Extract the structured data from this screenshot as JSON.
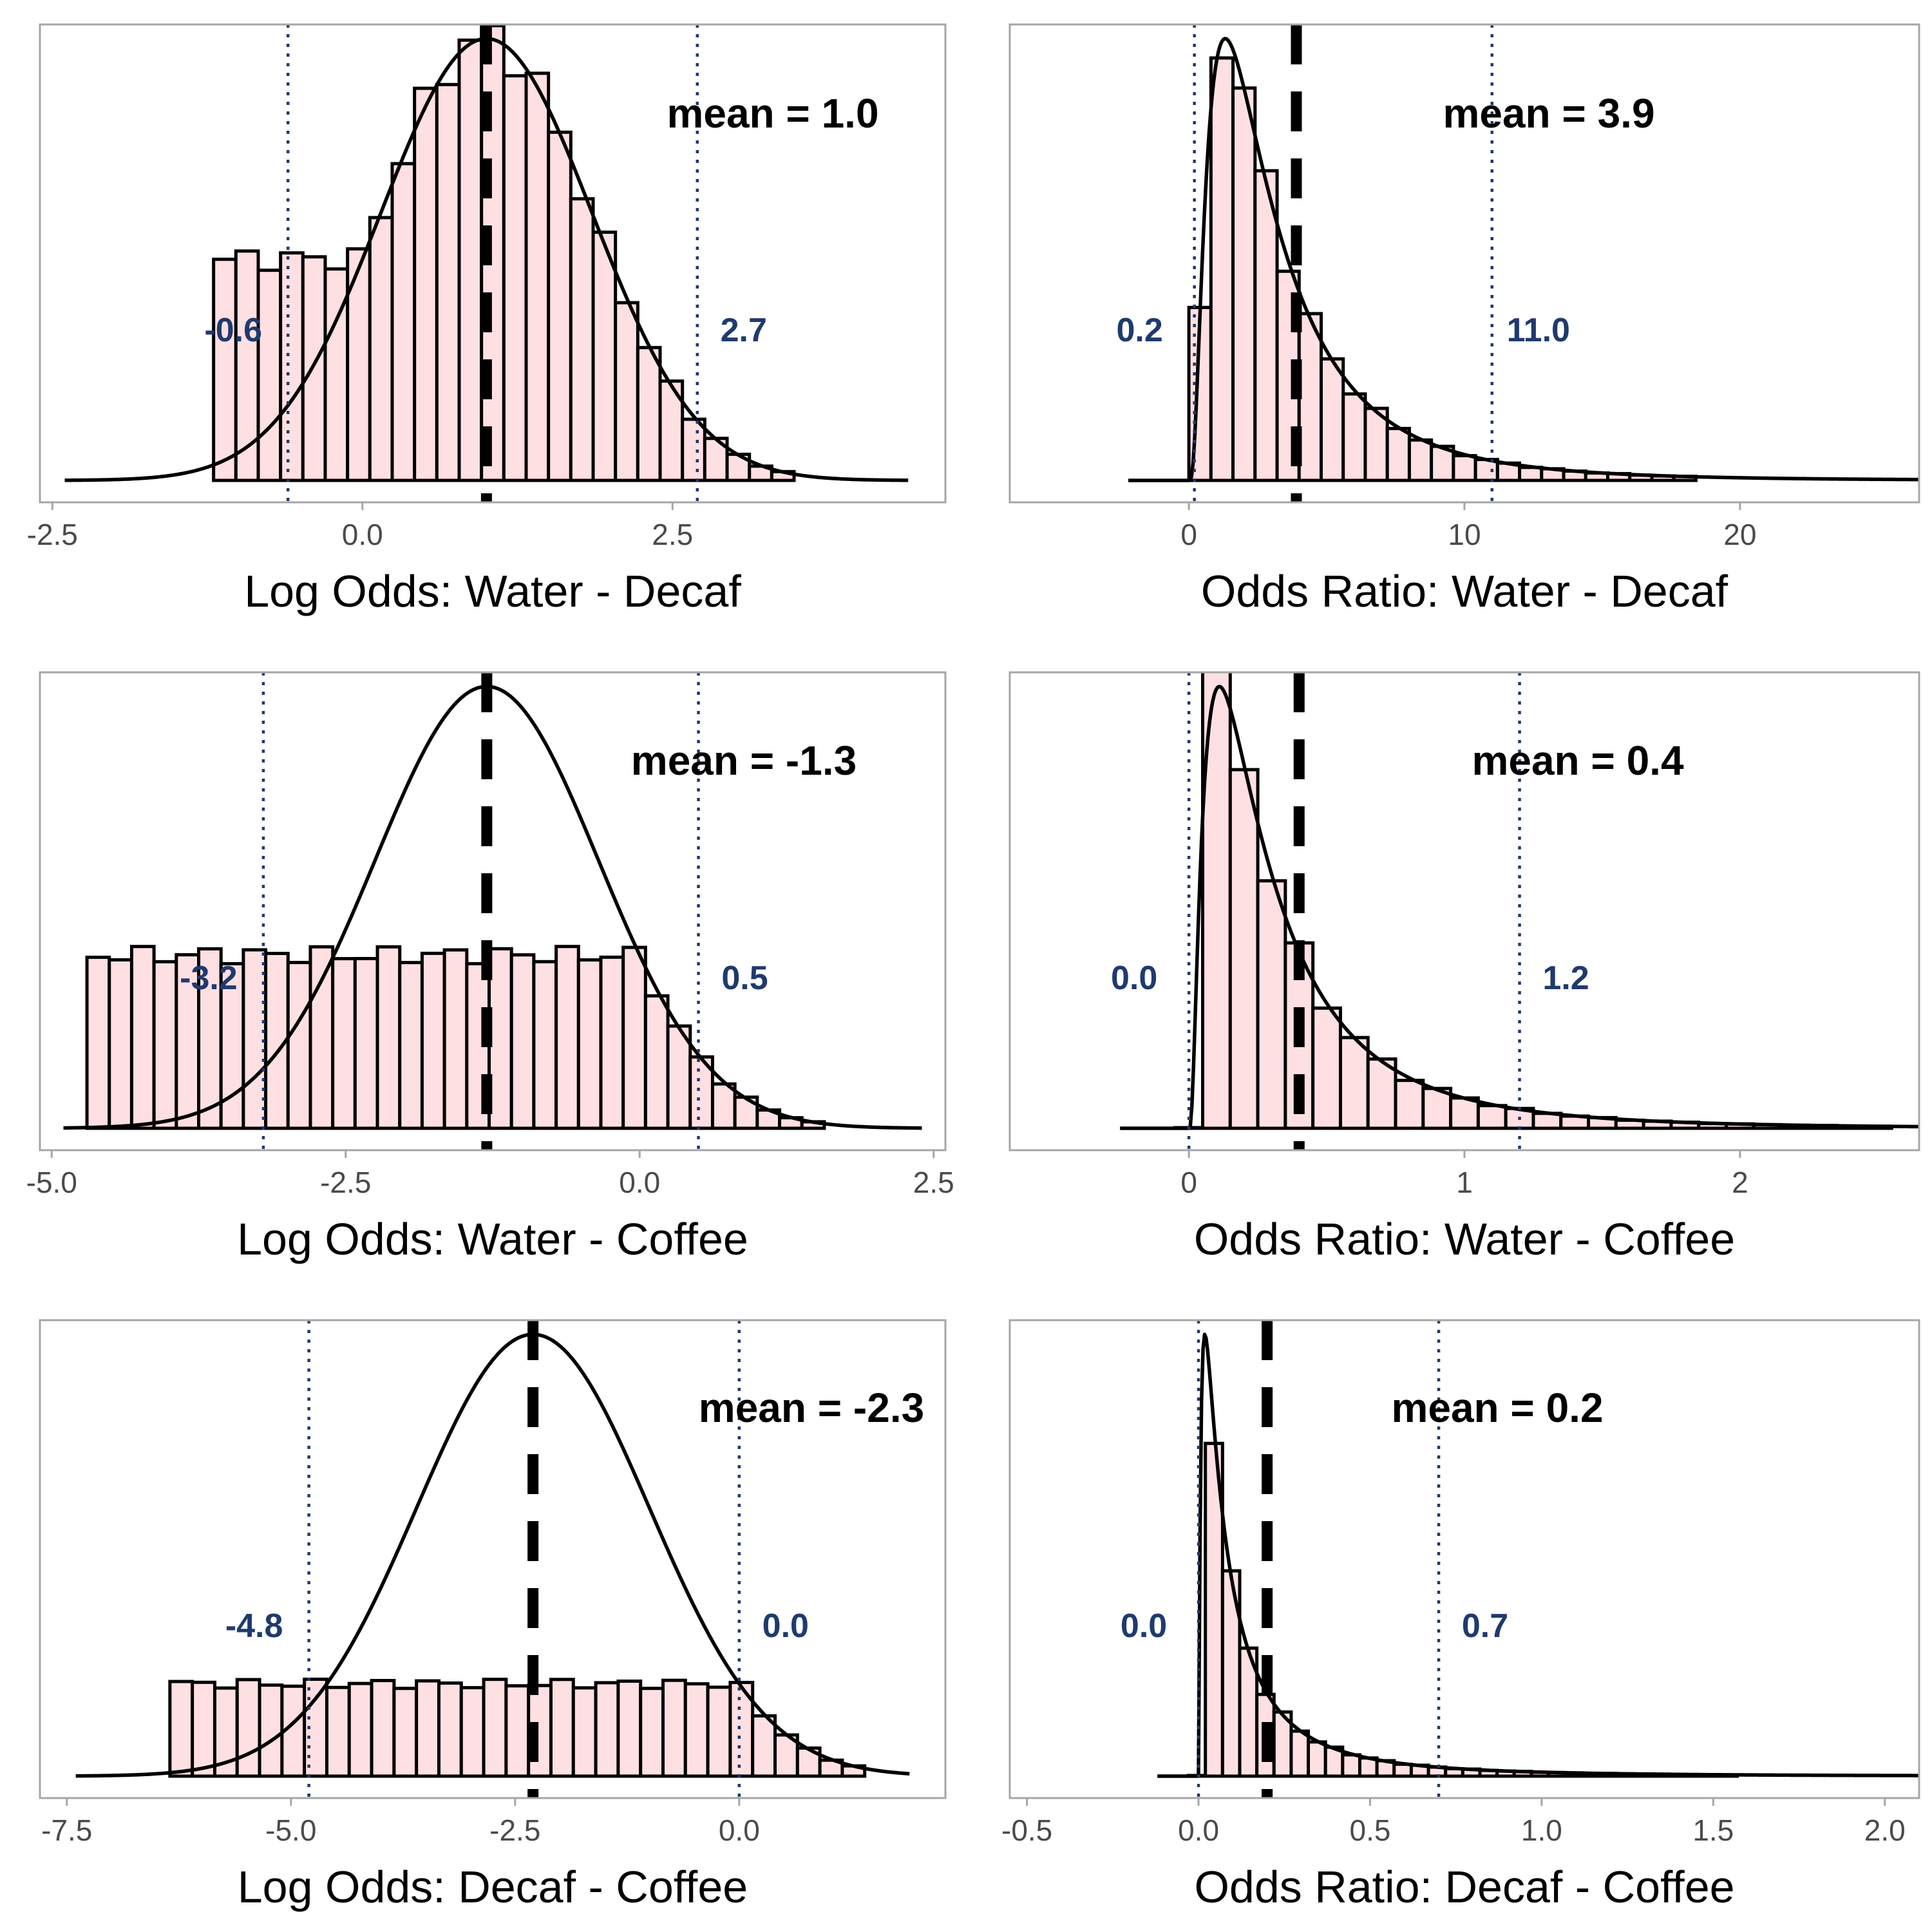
{
  "colors": {
    "bar_fill": "#ffe0e2",
    "bar_stroke": "#000000",
    "density_line": "#000000",
    "mean_line": "#000000",
    "ci_line": "#1f3a6e",
    "ci_label": "#1f3a6e",
    "frame": "#a6a6a6"
  },
  "chart_data": [
    {
      "type": "histogram",
      "grid": false,
      "xlabel": "Log Odds: Water - Decaf",
      "xlim": [
        -2.6,
        4.7
      ],
      "xticks": [
        -2.5,
        0.0,
        2.5
      ],
      "xtick_labels": [
        "-2.5",
        "0.0",
        "2.5"
      ],
      "dist": {
        "kind": "normal",
        "mu": 1.0,
        "sigma": 0.85
      },
      "density_range": [
        -2.4,
        4.4
      ],
      "bin_range": [
        -1.2,
        3.35
      ],
      "bin_width": 0.18,
      "mean": 1.0,
      "mean_label": "mean = 1.0",
      "ci": [
        -0.6,
        2.7
      ],
      "ci_labels": [
        "-0.6",
        "2.7"
      ]
    },
    {
      "type": "histogram",
      "grid": false,
      "xlabel": "Odds Ratio: Water - Decaf",
      "xlim": [
        -6.5,
        26.5
      ],
      "xticks": [
        0,
        10,
        20
      ],
      "xtick_labels": [
        "0",
        "10",
        "20"
      ],
      "dist": {
        "kind": "lognormal",
        "mu": 1.0,
        "sigma": 0.85
      },
      "density_range": [
        -2.2,
        26.5
      ],
      "bin_range": [
        0.0,
        18.2
      ],
      "bin_width": 0.8,
      "mean": 3.9,
      "mean_label": "mean = 3.9",
      "ci": [
        0.2,
        11.0
      ],
      "ci_labels": [
        "0.2",
        "11.0"
      ]
    },
    {
      "type": "histogram",
      "grid": false,
      "xlabel": "Log Odds: Water - Coffee",
      "xlim": [
        -5.1,
        2.6
      ],
      "xticks": [
        -5.0,
        -2.5,
        0.0,
        2.5
      ],
      "xtick_labels": [
        "-5.0",
        "-2.5",
        "0.0",
        "2.5"
      ],
      "dist": {
        "kind": "normal",
        "mu": -1.3,
        "sigma": 0.95
      },
      "density_range": [
        -4.9,
        2.4
      ],
      "bin_range": [
        -4.7,
        1.55
      ],
      "bin_width": 0.19,
      "mean": -1.3,
      "mean_label": "mean = -1.3",
      "ci": [
        -3.2,
        0.5
      ],
      "ci_labels": [
        "-3.2",
        "0.5"
      ]
    },
    {
      "type": "histogram",
      "grid": false,
      "xlabel": "Odds Ratio: Water - Coffee",
      "xlim": [
        -0.65,
        2.65
      ],
      "xticks": [
        0,
        1,
        2
      ],
      "xtick_labels": [
        "0",
        "1",
        "2"
      ],
      "dist": {
        "kind": "lognormal",
        "mu": -1.3,
        "sigma": 0.95
      },
      "density_range": [
        -0.25,
        2.65
      ],
      "bin_range": [
        -0.05,
        2.55
      ],
      "bin_width": 0.1,
      "mean": 0.4,
      "mean_label": "mean = 0.4",
      "ci": [
        0.0,
        1.2
      ],
      "ci_labels": [
        "0.0",
        "1.2"
      ]
    },
    {
      "type": "histogram",
      "grid": false,
      "xlabel": "Log Odds: Decaf - Coffee",
      "xlim": [
        -7.8,
        2.3
      ],
      "xticks": [
        -7.5,
        -5.0,
        -2.5,
        0.0
      ],
      "xtick_labels": [
        "-7.5",
        "-5.0",
        "-2.5",
        "0.0"
      ],
      "dist": {
        "kind": "normal",
        "mu": -2.3,
        "sigma": 1.3
      },
      "density_range": [
        -7.4,
        1.9
      ],
      "bin_range": [
        -6.35,
        1.25
      ],
      "bin_width": 0.25,
      "mean": -2.3,
      "mean_label": "mean = -2.3",
      "ci": [
        -4.8,
        0.0
      ],
      "ci_labels": [
        "-4.8",
        "0.0"
      ]
    },
    {
      "type": "histogram",
      "grid": false,
      "xlabel": "Odds Ratio: Decaf - Coffee",
      "xlim": [
        -0.55,
        2.1
      ],
      "xticks": [
        -0.5,
        0.0,
        0.5,
        1.0,
        1.5,
        2.0
      ],
      "xtick_labels": [
        "-0.5",
        "0.0",
        "0.5",
        "1.0",
        "1.5",
        "2.0"
      ],
      "dist": {
        "kind": "lognormal",
        "mu": -2.3,
        "sigma": 1.3
      },
      "density_range": [
        -0.12,
        2.1
      ],
      "bin_range": [
        -0.03,
        1.55
      ],
      "bin_width": 0.05,
      "mean": 0.2,
      "mean_label": "mean = 0.2",
      "ci": [
        0.0,
        0.7
      ],
      "ci_labels": [
        "0.0",
        "0.7"
      ]
    }
  ]
}
